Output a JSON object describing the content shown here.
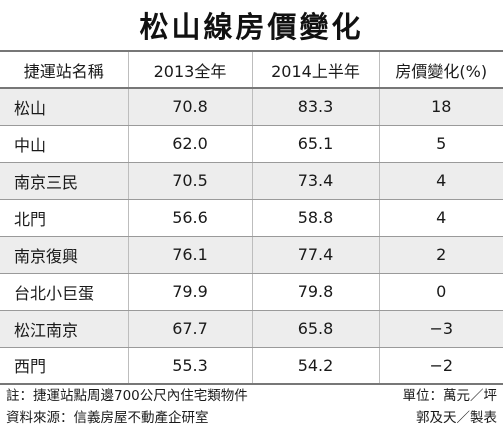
{
  "title": "松山線房價變化",
  "table": {
    "headers": [
      "捷運站名稱",
      "2013全年",
      "2014上半年",
      "房價變化(%)"
    ],
    "rows": [
      {
        "station": "松山",
        "y2013": "70.8",
        "h2014": "83.3",
        "change": "18"
      },
      {
        "station": "中山",
        "y2013": "62.0",
        "h2014": "65.1",
        "change": "5"
      },
      {
        "station": "南京三民",
        "y2013": "70.5",
        "h2014": "73.4",
        "change": "4"
      },
      {
        "station": "北門",
        "y2013": "56.6",
        "h2014": "58.8",
        "change": "4"
      },
      {
        "station": "南京復興",
        "y2013": "76.1",
        "h2014": "77.4",
        "change": "2"
      },
      {
        "station": "台北小巨蛋",
        "y2013": "79.9",
        "h2014": "79.8",
        "change": "0"
      },
      {
        "station": "松江南京",
        "y2013": "67.7",
        "h2014": "65.8",
        "change": "−3"
      },
      {
        "station": "西門",
        "y2013": "55.3",
        "h2014": "54.2",
        "change": "−2"
      }
    ]
  },
  "footer": {
    "note": "註：捷運站點周邊700公尺內住宅類物件",
    "unit": "單位：萬元／坪",
    "source": "資料來源：信義房屋不動產企研室",
    "credit": "郭及天／製表"
  },
  "colors": {
    "shade": "#ededed",
    "rule": "#777777"
  }
}
